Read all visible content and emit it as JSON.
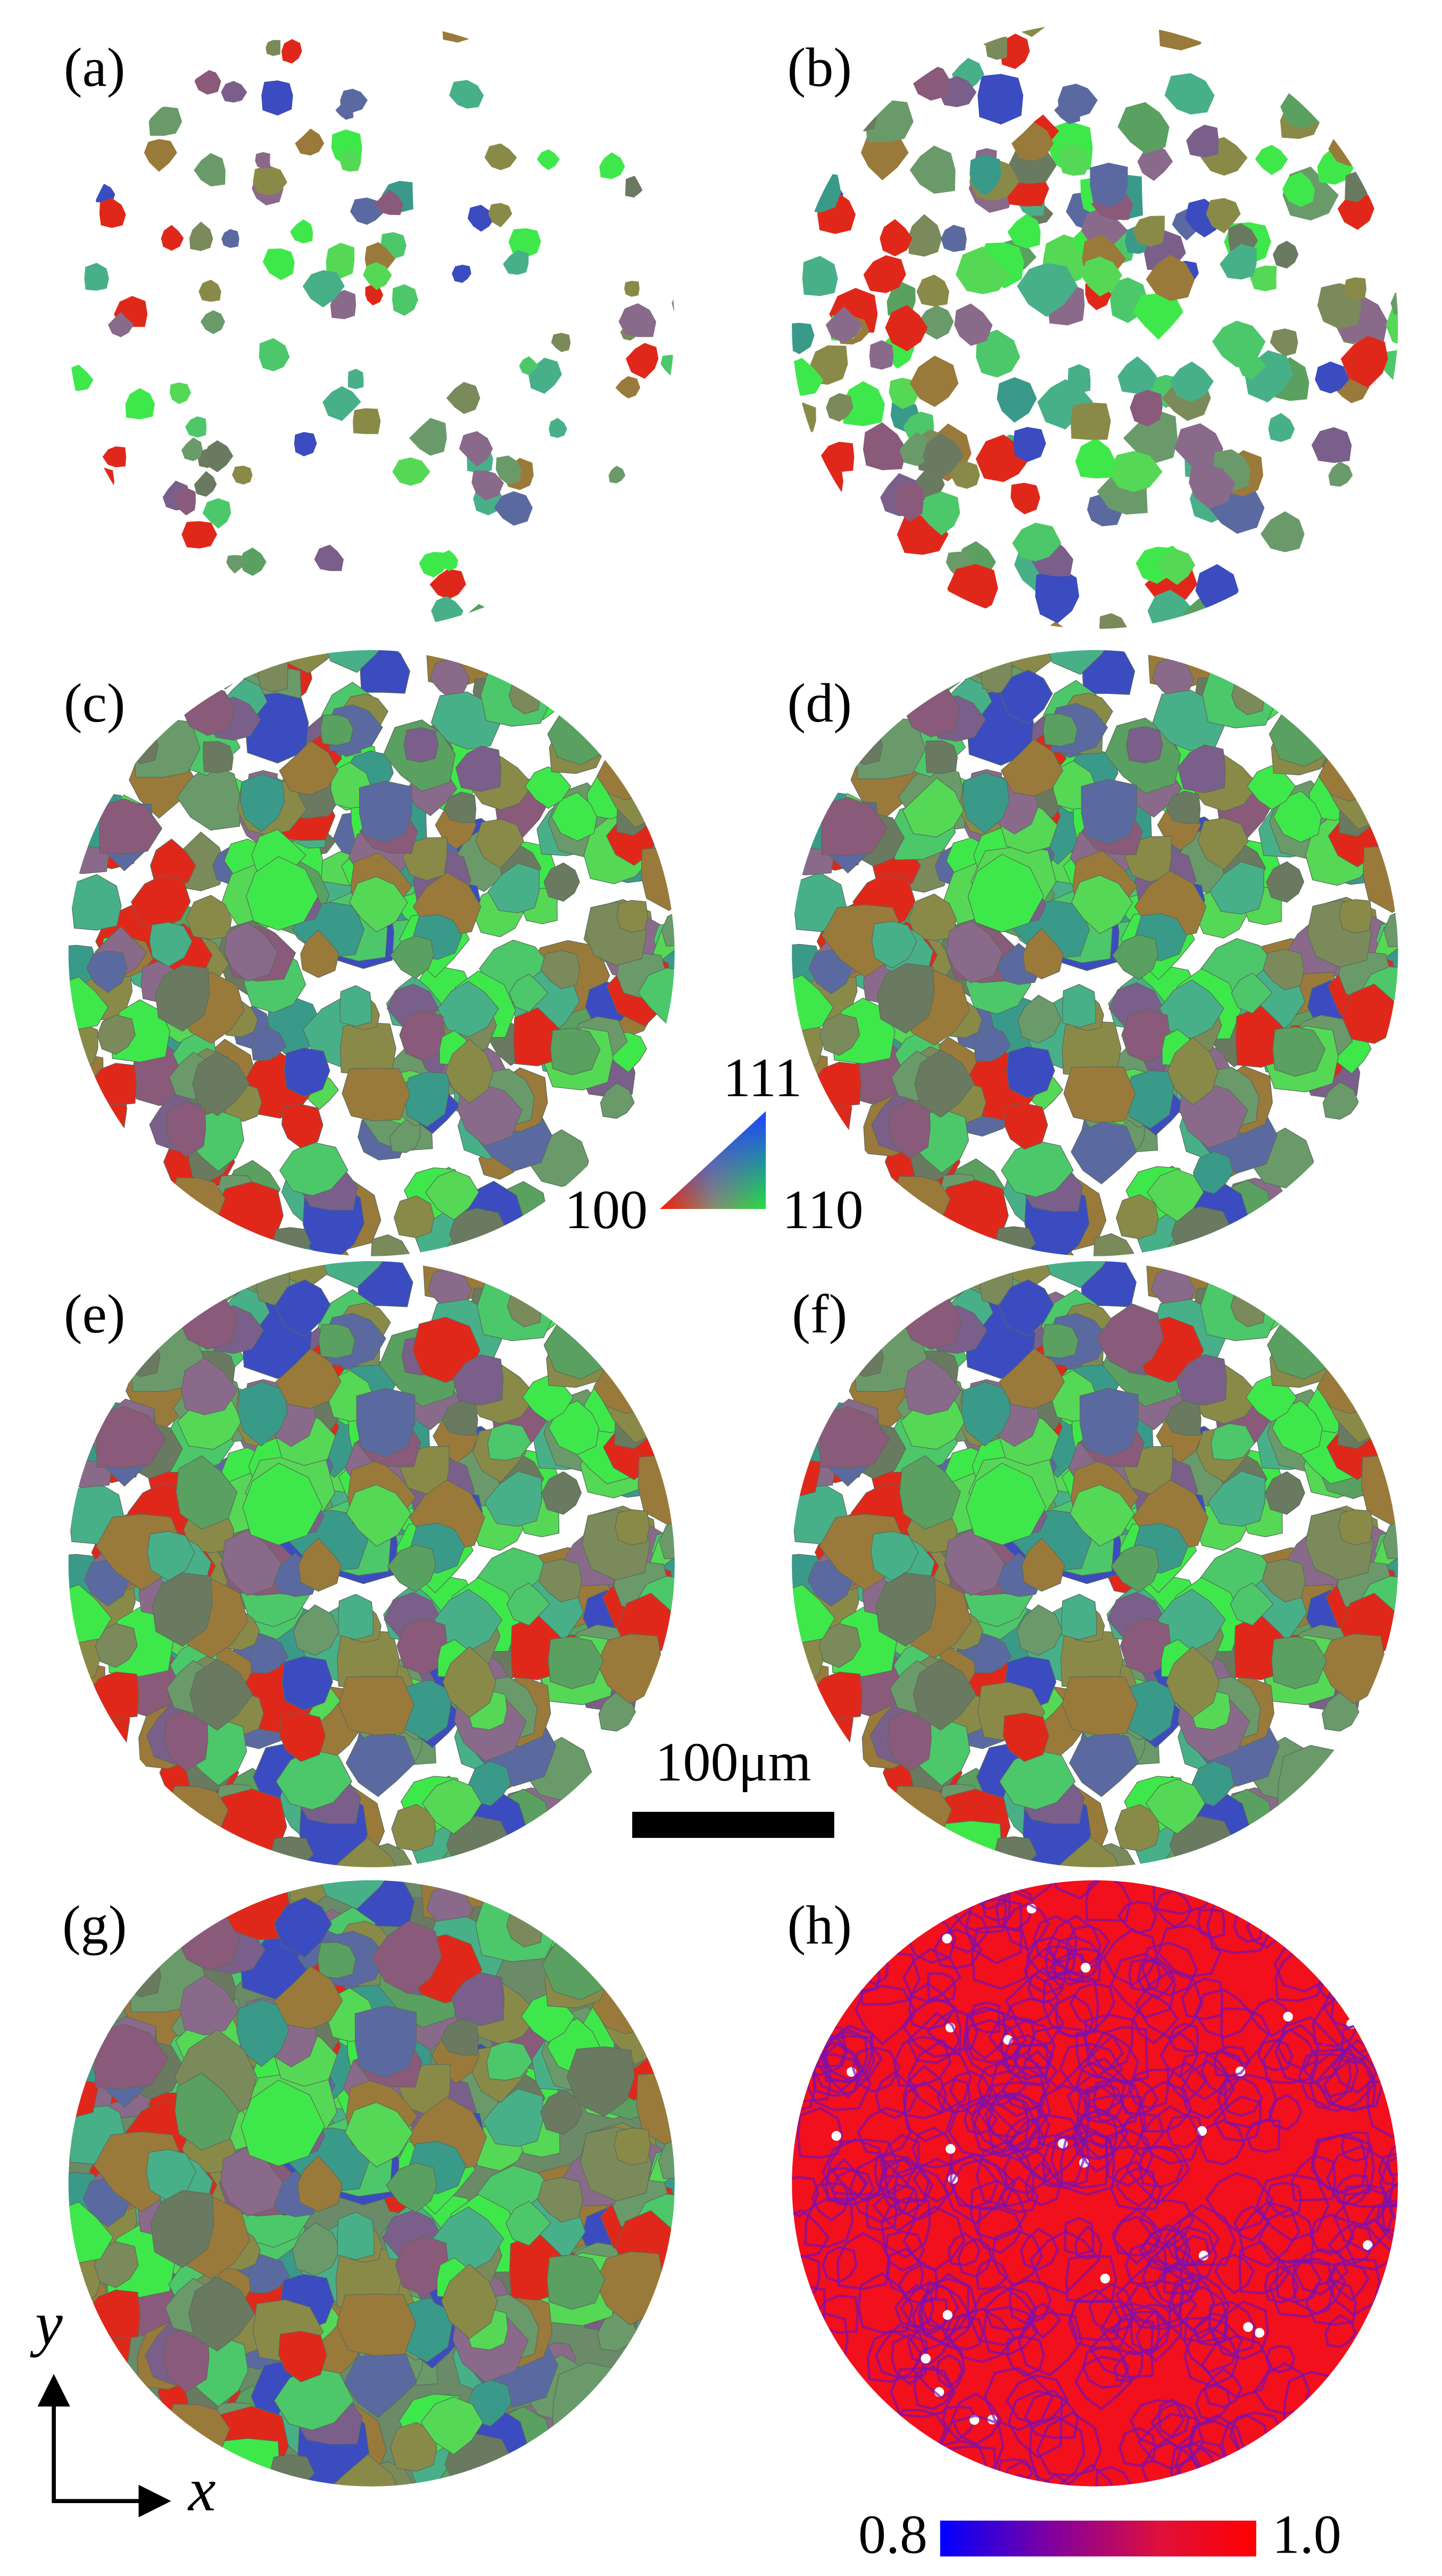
{
  "panels": [
    {
      "label": "(a)"
    },
    {
      "label": "(b)"
    },
    {
      "label": "(c)"
    },
    {
      "label": "(d)"
    },
    {
      "label": "(e)"
    },
    {
      "label": "(f)"
    },
    {
      "label": "(g)"
    },
    {
      "label": "(h)"
    }
  ],
  "ipf_legend": {
    "top": "111",
    "left": "100",
    "right": "110"
  },
  "scale_bar": {
    "label": "100μm"
  },
  "colorbar": {
    "min_label": "0.8",
    "max_label": "1.0"
  },
  "axes": {
    "y": "y",
    "x": "x"
  }
}
